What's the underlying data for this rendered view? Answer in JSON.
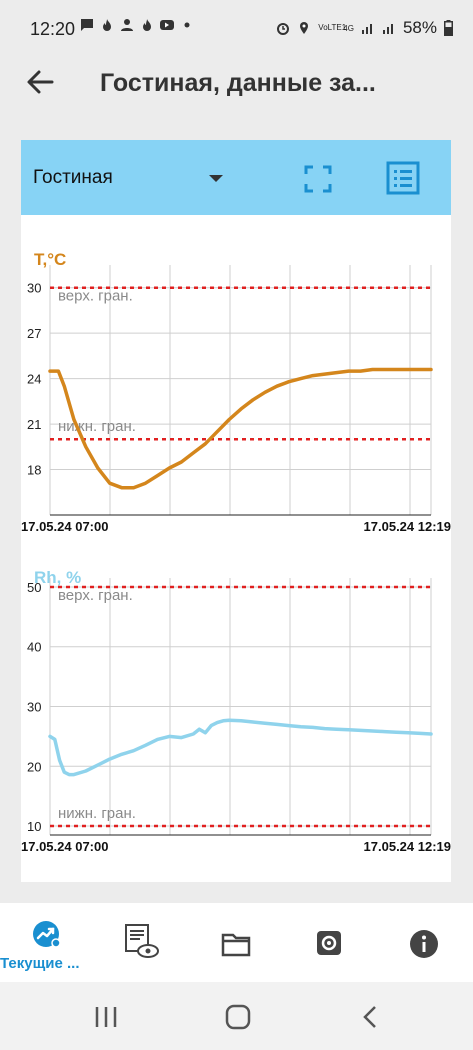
{
  "status": {
    "time": "12:20",
    "network": "VoLTE1",
    "network_type": "4G",
    "battery": "58%"
  },
  "header": {
    "title": "Гостиная, данные за..."
  },
  "room_selector": {
    "selected": "Гостиная"
  },
  "bottom_nav": {
    "items": [
      {
        "label": "Текущие ...",
        "icon": "trend-chart-icon",
        "active": true
      },
      {
        "icon": "eye-document-icon"
      },
      {
        "icon": "folder-icon"
      },
      {
        "icon": "gear-icon"
      },
      {
        "icon": "info-icon"
      }
    ]
  },
  "colors": {
    "temperature": "#d4861c",
    "humidity": "#8fd3ec",
    "limit": "#e02020",
    "header": "#87d3f5",
    "accent": "#1a8fd0"
  },
  "chart_data": [
    {
      "type": "line",
      "title": "T,°C",
      "x_start_label": "17.05.24 07:00",
      "x_end_label": "17.05.24 12:19",
      "xlim": [
        0,
        319
      ],
      "ylim": [
        15,
        31.5
      ],
      "y_ticks": [
        18,
        21,
        24,
        27,
        30
      ],
      "upper_limit": {
        "value": 30,
        "label": "верх. гран."
      },
      "lower_limit": {
        "value": 20,
        "label": "нижн. гран."
      },
      "series": [
        {
          "x": [
            0,
            7,
            12,
            20,
            30,
            40,
            50,
            60,
            70,
            80,
            90,
            100,
            110,
            120,
            130,
            140,
            150,
            160,
            170,
            180,
            190,
            200,
            210,
            220,
            230,
            240,
            250,
            260,
            270,
            280,
            290,
            300,
            310,
            319
          ],
          "y": [
            24.5,
            24.5,
            23.5,
            21.3,
            19.5,
            18.1,
            17.1,
            16.8,
            16.8,
            17.1,
            17.6,
            18.1,
            18.5,
            19.1,
            19.7,
            20.5,
            21.3,
            22.0,
            22.6,
            23.1,
            23.5,
            23.8,
            24.0,
            24.2,
            24.3,
            24.4,
            24.5,
            24.5,
            24.6,
            24.6,
            24.6,
            24.6,
            24.6,
            24.6
          ]
        }
      ]
    },
    {
      "type": "line",
      "title": "Rh, %",
      "x_start_label": "17.05.24 07:00",
      "x_end_label": "17.05.24 12:19",
      "xlim": [
        0,
        319
      ],
      "ylim": [
        8.5,
        51.5
      ],
      "y_ticks": [
        10,
        20,
        30,
        40,
        50
      ],
      "upper_limit": {
        "value": 50,
        "label": "верх. гран."
      },
      "lower_limit": {
        "value": 10,
        "label": "нижн. гран."
      },
      "series": [
        {
          "x": [
            0,
            4,
            8,
            12,
            16,
            20,
            30,
            40,
            50,
            60,
            70,
            80,
            90,
            100,
            110,
            120,
            125,
            130,
            135,
            140,
            145,
            150,
            160,
            170,
            180,
            190,
            200,
            210,
            220,
            230,
            240,
            250,
            260,
            270,
            280,
            290,
            300,
            310,
            319
          ],
          "y": [
            25,
            24.5,
            21,
            19,
            18.6,
            18.6,
            19.2,
            20.2,
            21.2,
            22,
            22.6,
            23.5,
            24.5,
            25,
            24.8,
            25.4,
            26.2,
            25.6,
            26.8,
            27.3,
            27.6,
            27.7,
            27.6,
            27.4,
            27.2,
            27,
            26.8,
            26.6,
            26.5,
            26.3,
            26.2,
            26.1,
            26,
            25.9,
            25.8,
            25.7,
            25.6,
            25.5,
            25.4
          ]
        }
      ]
    }
  ]
}
